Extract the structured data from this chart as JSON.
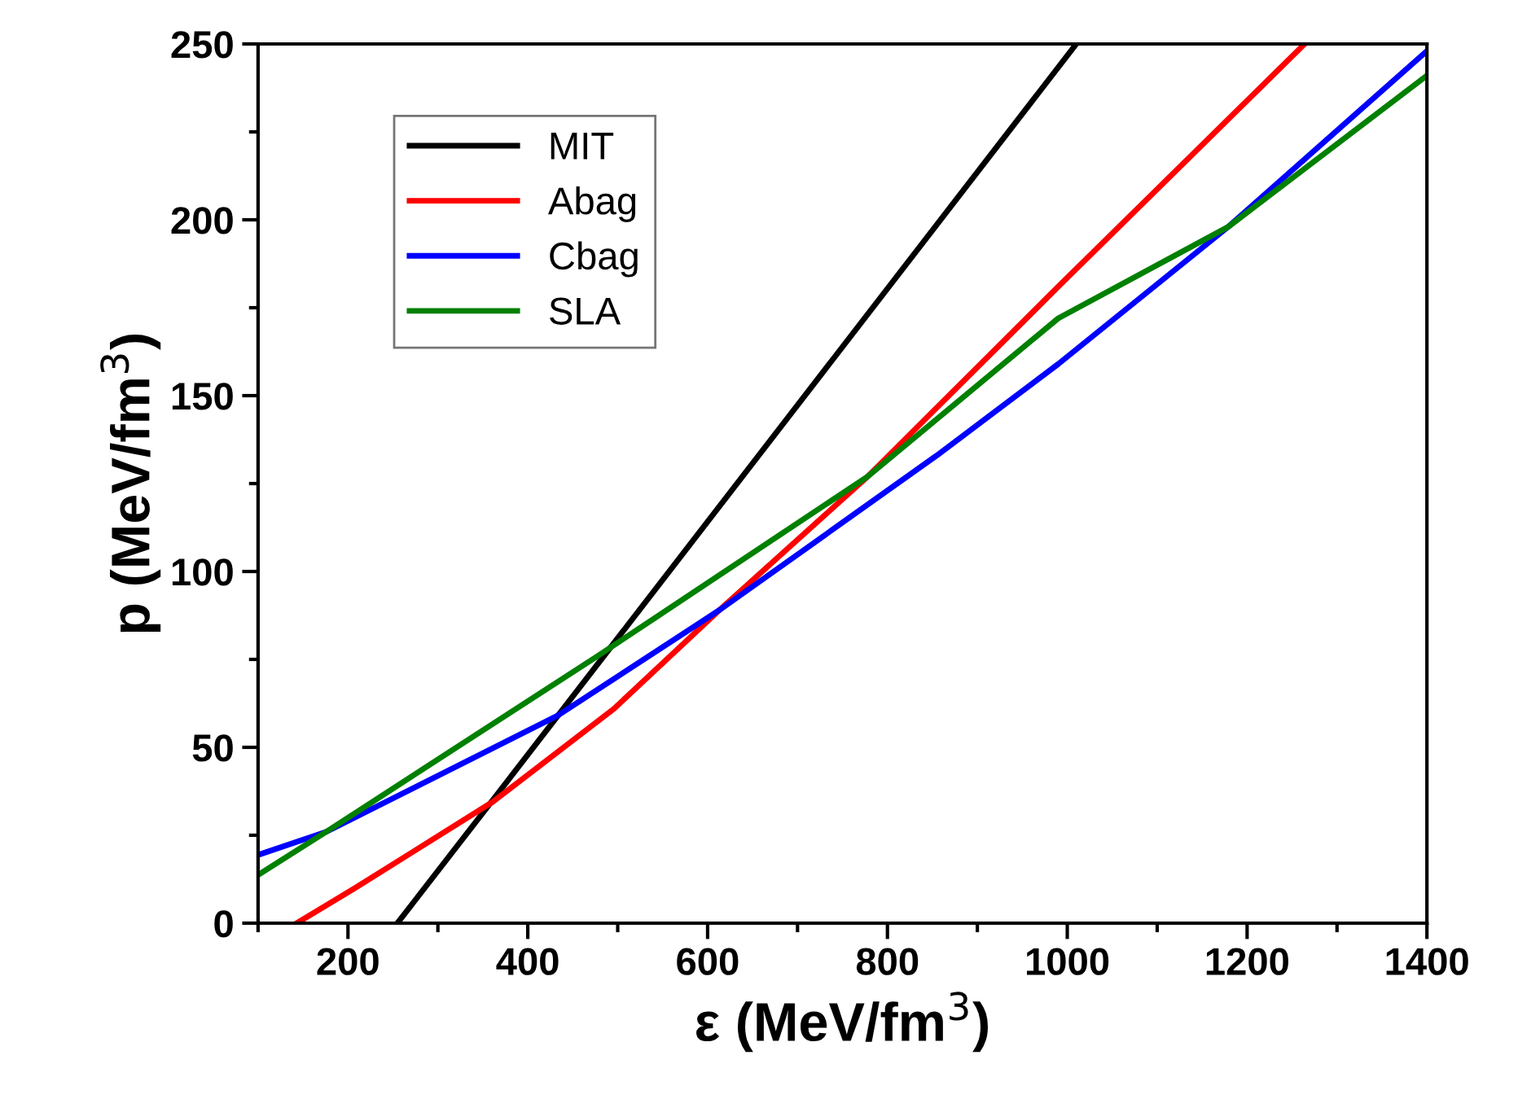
{
  "chart_data": {
    "type": "line",
    "xlabel": "ε (MeV/fm$^{3}$)",
    "ylabel": "p (MeV/fm$^{3}$)",
    "xlim": [
      100,
      1400
    ],
    "xticks": [
      200,
      400,
      600,
      800,
      1000,
      1200,
      1400
    ],
    "ylim": [
      0,
      250
    ],
    "yticks": [
      0,
      50,
      100,
      150,
      200,
      250
    ],
    "legend": "top left",
    "grid": false,
    "line_style": "solid",
    "marker": "none",
    "series": [
      {
        "name": "MIT",
        "color": "#000000",
        "x": [
          255,
          361,
          1010
        ],
        "values": [
          0,
          35,
          250
        ]
      },
      {
        "name": "Abag",
        "color": "#ff0000",
        "x": [
          143,
          208,
          361,
          496,
          613,
          778,
          990,
          1264
        ],
        "values": [
          0,
          10,
          34.5,
          61,
          89,
          127,
          181,
          250
        ]
      },
      {
        "name": "Cbag",
        "color": "#0000ff",
        "x": [
          100,
          176,
          433,
          613,
          855,
          990,
          1179,
          1400
        ],
        "values": [
          19.4,
          26,
          59,
          89,
          133,
          159,
          198,
          248
        ]
      },
      {
        "name": "SLA",
        "color": "#008000",
        "x": [
          100,
          176,
          478,
          778,
          990,
          1179,
          1400
        ],
        "values": [
          13.7,
          26,
          76,
          127,
          172,
          198,
          241
        ]
      }
    ]
  }
}
